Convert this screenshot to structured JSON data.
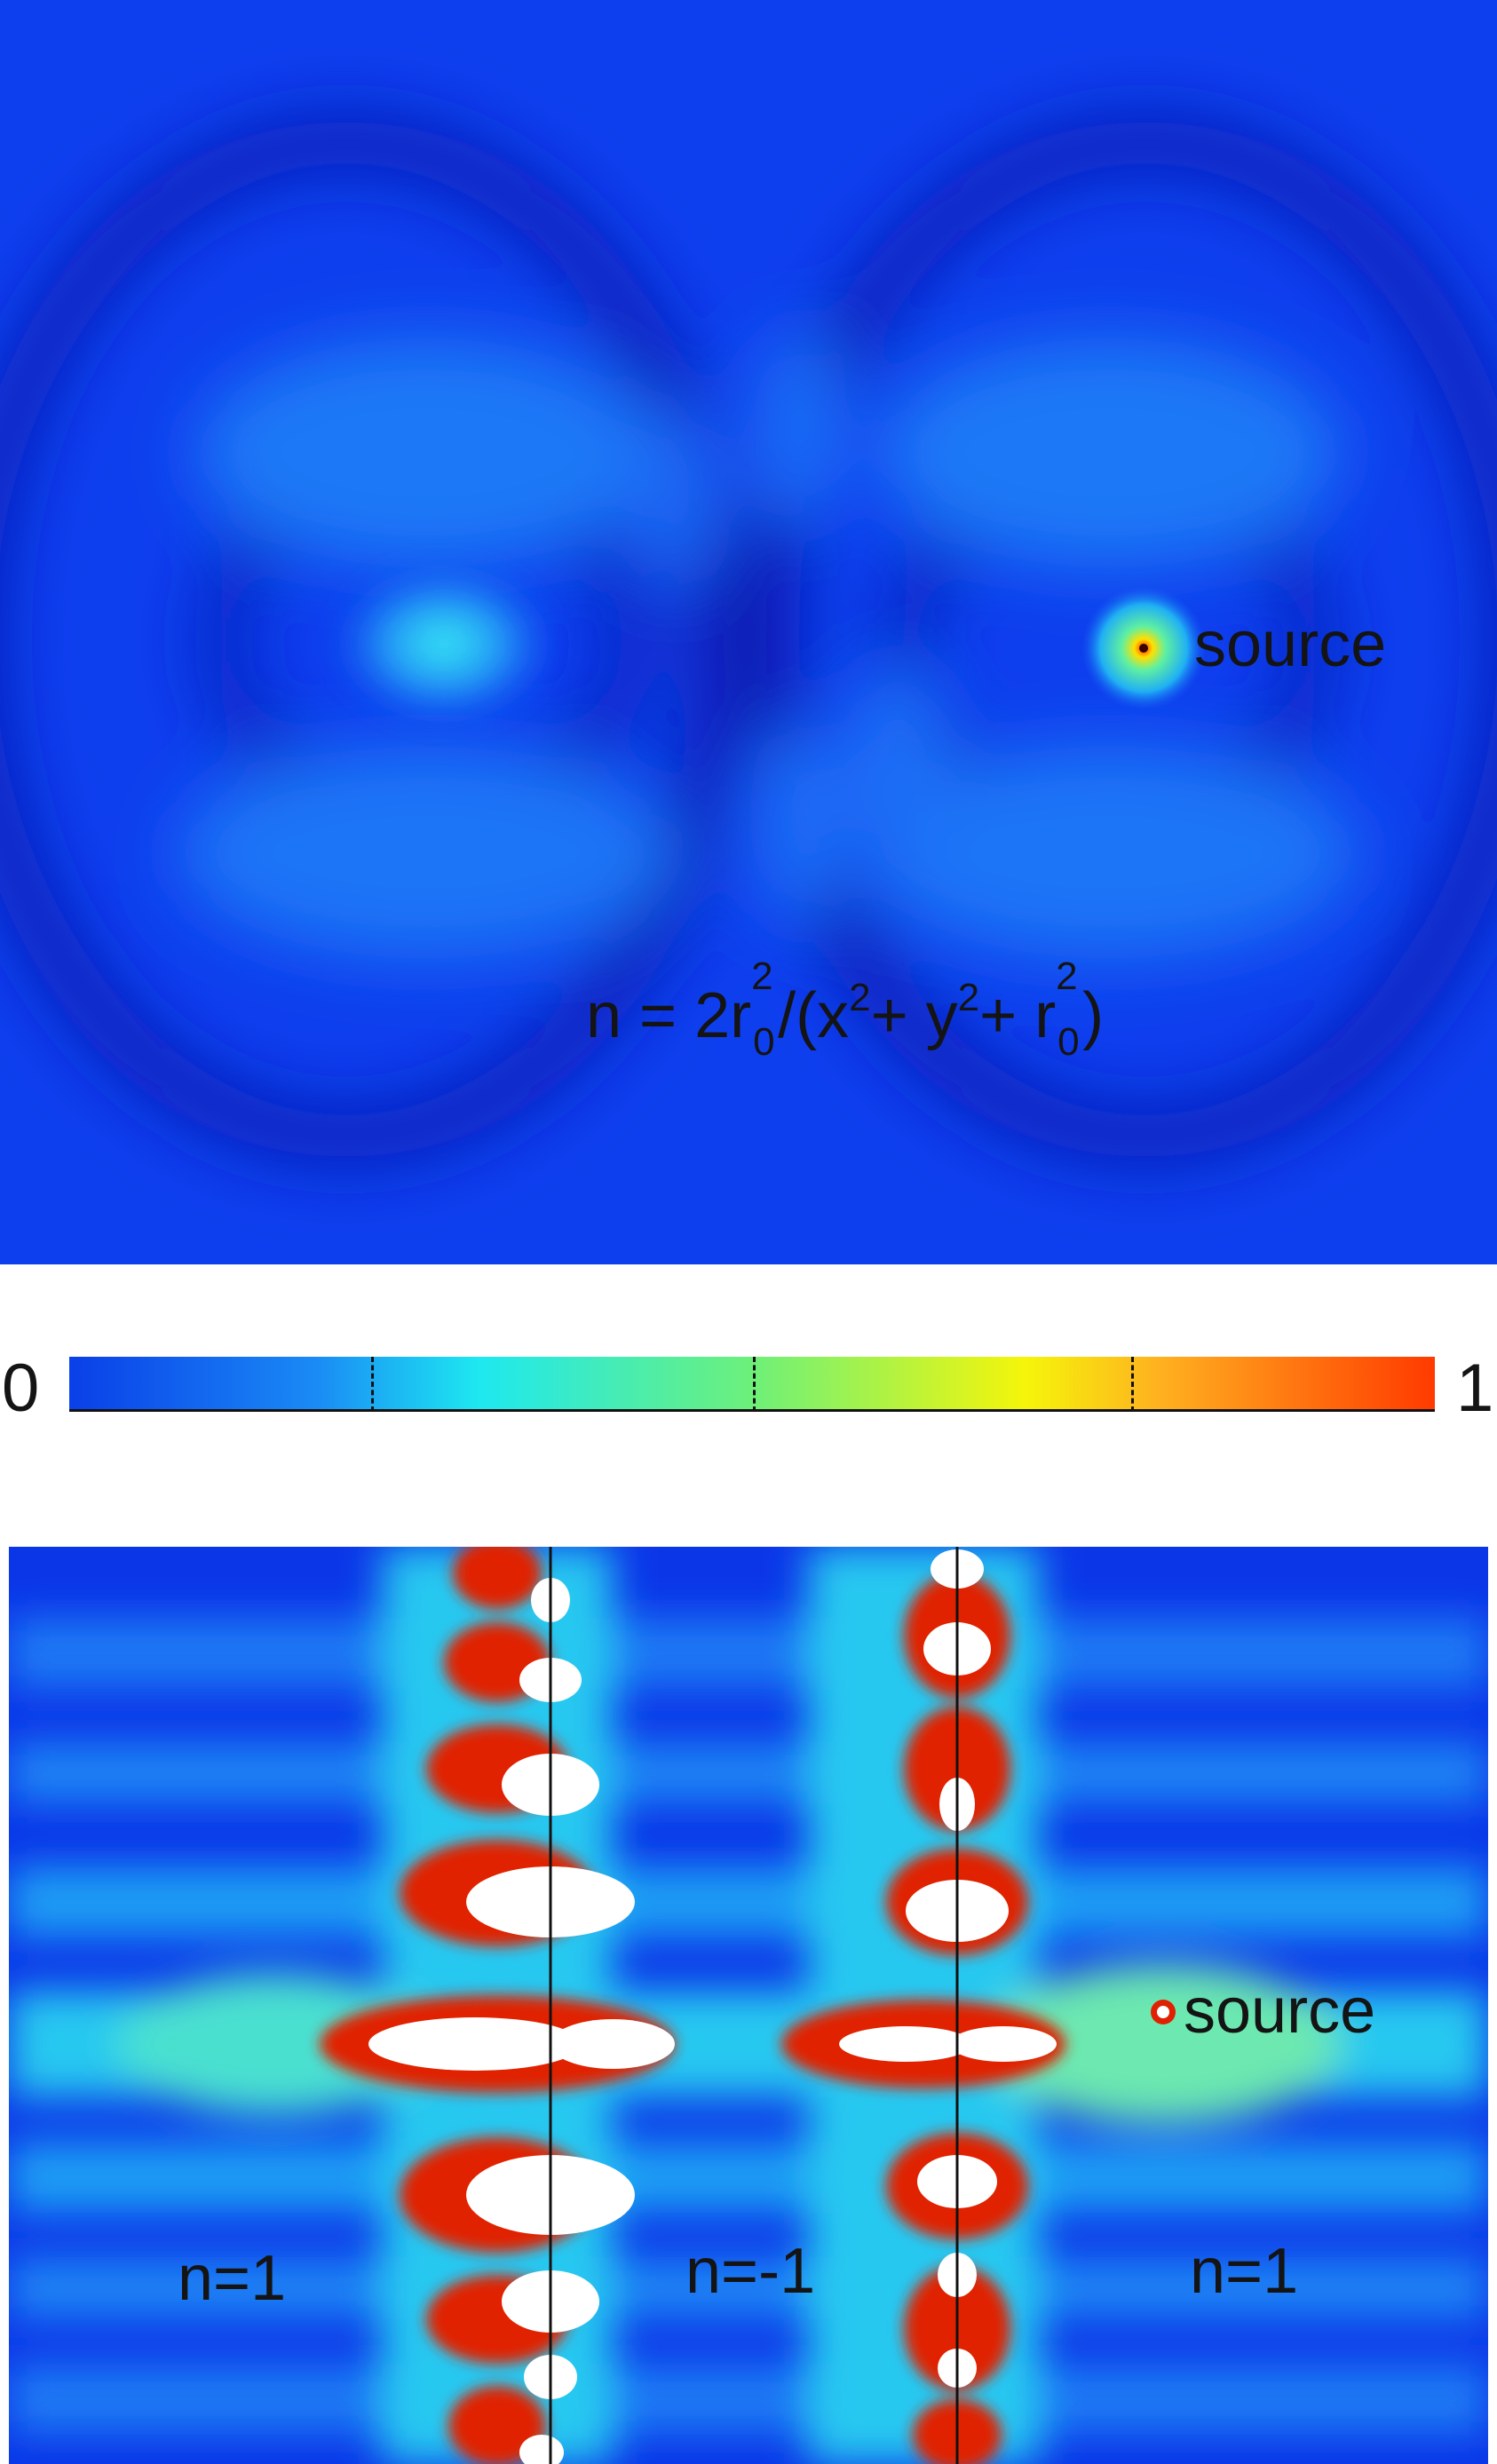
{
  "top_panel": {
    "source_label": "source",
    "formula": {
      "lead": "n = 2r",
      "sup1": "2",
      "sub1": "0",
      "mid1": "/(x",
      "sup2": "2",
      "mid2": "+ y",
      "sup3": "2",
      "mid3": "+ r",
      "sup4": "2",
      "sub4": "0",
      "tail": ")"
    }
  },
  "colorbar": {
    "min_label": "0",
    "max_label": "1",
    "colors": [
      "#0a3fe8",
      "#1ee8f0",
      "#f5f50a",
      "#ff3a00"
    ]
  },
  "bottom_panel": {
    "source_label": "source",
    "region_labels": [
      "n=1",
      "n=-1",
      "n=1"
    ]
  }
}
